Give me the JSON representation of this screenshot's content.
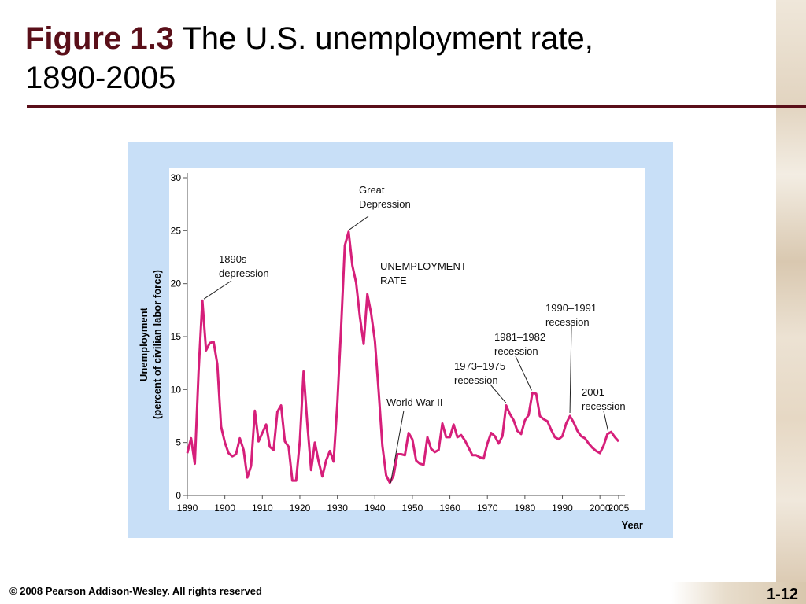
{
  "slide": {
    "title_bold": "Figure 1.3",
    "title_rest": " The U.S. unemployment rate,",
    "title_line2": "1890-2005",
    "copyright": "© 2008 Pearson Addison-Wesley. All rights reserved",
    "page_number": "1-12"
  },
  "colors": {
    "line": "#d61f7a",
    "frame": "#c8dff7",
    "title_accent": "#5a0f19"
  },
  "chart_data": {
    "type": "line",
    "ylabel_line1": "Unemployment",
    "ylabel_line2": "(percent of civilian labor force)",
    "xlabel": "Year",
    "xlim": [
      1890,
      2005
    ],
    "ylim": [
      0,
      30
    ],
    "yticks": [
      "0",
      "5",
      "10",
      "15",
      "20",
      "25",
      "30"
    ],
    "xticks": [
      "1890",
      "1900",
      "1910",
      "1920",
      "1930",
      "1940",
      "1950",
      "1960",
      "1970",
      "1980",
      "1990",
      "2000",
      "2005"
    ],
    "series": [
      {
        "name": "UNEMPLOYMENT RATE",
        "x": [
          1890,
          1891,
          1892,
          1893,
          1894,
          1895,
          1896,
          1897,
          1898,
          1899,
          1900,
          1901,
          1902,
          1903,
          1904,
          1905,
          1906,
          1907,
          1908,
          1909,
          1910,
          1911,
          1912,
          1913,
          1914,
          1915,
          1916,
          1917,
          1918,
          1919,
          1920,
          1921,
          1922,
          1923,
          1924,
          1925,
          1926,
          1927,
          1928,
          1929,
          1930,
          1931,
          1932,
          1933,
          1934,
          1935,
          1936,
          1937,
          1938,
          1939,
          1940,
          1941,
          1942,
          1943,
          1944,
          1945,
          1946,
          1947,
          1948,
          1949,
          1950,
          1951,
          1952,
          1953,
          1954,
          1955,
          1956,
          1957,
          1958,
          1959,
          1960,
          1961,
          1962,
          1963,
          1964,
          1965,
          1966,
          1967,
          1968,
          1969,
          1970,
          1971,
          1972,
          1973,
          1974,
          1975,
          1976,
          1977,
          1978,
          1979,
          1980,
          1981,
          1982,
          1983,
          1984,
          1985,
          1986,
          1987,
          1988,
          1989,
          1990,
          1991,
          1992,
          1993,
          1994,
          1995,
          1996,
          1997,
          1998,
          1999,
          2000,
          2001,
          2002,
          2003,
          2004,
          2005
        ],
        "y": [
          4.0,
          5.4,
          3.0,
          11.7,
          18.4,
          13.7,
          14.4,
          14.5,
          12.4,
          6.5,
          5.0,
          4.0,
          3.7,
          3.9,
          5.4,
          4.3,
          1.7,
          2.8,
          8.0,
          5.1,
          5.9,
          6.7,
          4.6,
          4.3,
          7.9,
          8.5,
          5.1,
          4.6,
          1.4,
          1.4,
          5.2,
          11.7,
          6.7,
          2.4,
          5.0,
          3.2,
          1.8,
          3.3,
          4.2,
          3.2,
          8.7,
          15.9,
          23.6,
          24.9,
          21.7,
          20.1,
          16.9,
          14.3,
          19.0,
          17.2,
          14.6,
          9.9,
          4.7,
          1.9,
          1.2,
          1.9,
          3.9,
          3.9,
          3.8,
          5.9,
          5.3,
          3.3,
          3.0,
          2.9,
          5.5,
          4.4,
          4.1,
          4.3,
          6.8,
          5.5,
          5.5,
          6.7,
          5.5,
          5.7,
          5.2,
          4.5,
          3.8,
          3.8,
          3.6,
          3.5,
          4.9,
          5.9,
          5.6,
          4.9,
          5.6,
          8.5,
          7.7,
          7.1,
          6.1,
          5.8,
          7.1,
          7.6,
          9.7,
          9.6,
          7.5,
          7.2,
          7.0,
          6.2,
          5.5,
          5.3,
          5.6,
          6.8,
          7.5,
          6.9,
          6.1,
          5.6,
          5.4,
          4.9,
          4.5,
          4.2,
          4.0,
          4.7,
          5.8,
          6.0,
          5.5,
          5.1
        ]
      }
    ],
    "annotations": [
      {
        "lines": [
          "Great",
          "Depression"
        ],
        "x": 1933,
        "y": 24.9
      },
      {
        "lines": [
          "1890s",
          "depression"
        ],
        "x": 1894,
        "y": 18.4
      },
      {
        "lines": [
          "UNEMPLOYMENT",
          "RATE"
        ]
      },
      {
        "lines": [
          "1990–1991",
          "recession"
        ],
        "x": 1992,
        "y": 7.5
      },
      {
        "lines": [
          "1981–1982",
          "recession"
        ],
        "x": 1982,
        "y": 9.7
      },
      {
        "lines": [
          "1973–1975",
          "recession"
        ],
        "x": 1975,
        "y": 8.5
      },
      {
        "lines": [
          "World War II"
        ],
        "x": 1944,
        "y": 1.2
      },
      {
        "lines": [
          "2001",
          "recession"
        ],
        "x": 2002,
        "y": 5.8
      }
    ]
  }
}
